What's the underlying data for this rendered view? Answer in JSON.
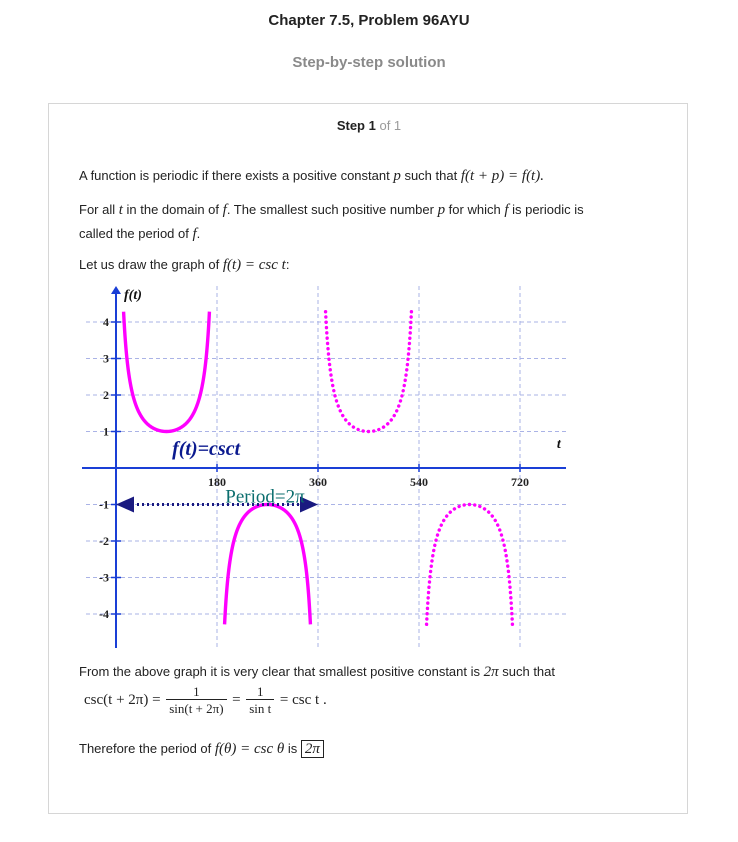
{
  "header": {
    "title": "Chapter 7.5, Problem 96AYU",
    "subtitle": "Step-by-step solution"
  },
  "step": {
    "label": "Step 1",
    "of": "of 1"
  },
  "text": {
    "p1a": "A function is periodic if there exists a positive constant ",
    "p1b": " such that ",
    "p1_math": "f(t + p) = f(t).",
    "p2a": "For all ",
    "p2b": " in the domain of ",
    "p2c": ". The smallest such positive number ",
    "p2d": " for which ",
    "p2e": " is periodic is",
    "p2f": "called the period of ",
    "p2g": ".",
    "p3a": "Let us draw the graph of ",
    "p3_math": "f(t) = csc t",
    "p3b": ":",
    "p4": "From the above graph it is very clear that smallest positive constant is ",
    "p4_math": "2π",
    "p4b": " such that",
    "eq_lhs": "csc(t + 2π) =",
    "eq_num1": "1",
    "eq_den1": "sin(t + 2π)",
    "eq_eq": "=",
    "eq_num2": "1",
    "eq_den2": "sin t",
    "eq_rhs": "= csc t .",
    "p5a": "Therefore the period of ",
    "p5_math": "f(θ) = csc θ",
    "p5b": " is ",
    "answer": "2π",
    "var_p": "p",
    "var_t": "t",
    "var_f": "f"
  },
  "chart_data": {
    "type": "line",
    "title": "",
    "xlabel": "t",
    "ylabel": "f(t)",
    "xlim": [
      -25,
      800
    ],
    "ylim": [
      -4.3,
      4.3
    ],
    "x_ticks": [
      180,
      360,
      540,
      720
    ],
    "x_tick_labels": [
      "180",
      "360",
      "540",
      "720"
    ],
    "y_ticks": [
      -4,
      -3,
      -2,
      -1,
      1,
      2,
      3,
      4
    ],
    "y_tick_labels": [
      "-4",
      "-3",
      "-2",
      "-1",
      "1",
      "2",
      "3",
      "4"
    ],
    "grid": true,
    "annotations": {
      "function_label": "f(t)=csct",
      "period_label": "Period=2π",
      "period_start": 0,
      "period_end": 360,
      "period_y": -1
    },
    "series": [
      {
        "style": "solid",
        "color": "#ff00ff",
        "x_range": [
          0,
          360
        ],
        "formula": "csc"
      },
      {
        "style": "dotted",
        "color": "#ff00ff",
        "x_range": [
          360,
          720
        ],
        "formula": "csc"
      }
    ],
    "colors": {
      "curve": "#ff00ff",
      "axis": "#1a3fd6",
      "grid": "#aab3e6",
      "period_arrow": "#1a1a80",
      "label_teal": "#0b6e6e"
    }
  }
}
